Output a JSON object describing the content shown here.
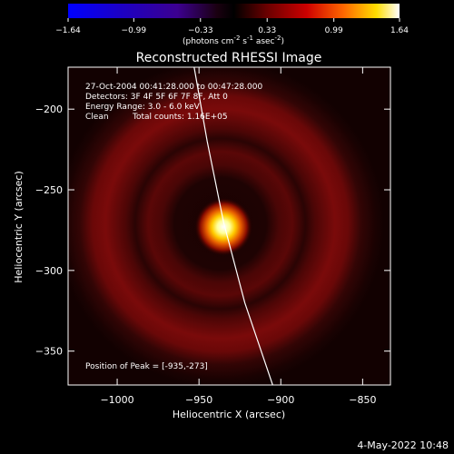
{
  "colorbar": {
    "ticks": [
      "-1.64",
      "-0.99",
      "-0.33",
      "0.33",
      "0.99",
      "1.64"
    ],
    "range": [
      -1.64,
      1.64
    ],
    "units_main": "(photons cm",
    "units_exp1": "-2",
    "units_mid": " s",
    "units_exp2": "-1",
    "units_tail": " asec",
    "units_exp3": "-2",
    "units_close": ")"
  },
  "chart_data": {
    "type": "heatmap",
    "title": "Reconstructed RHESSI Image",
    "xlabel": "Heliocentric X (arcsec)",
    "ylabel": "Heliocentric Y (arcsec)",
    "xlim": [
      -1030,
      -833
    ],
    "ylim": [
      -371,
      -174
    ],
    "xticks": [
      -1000,
      -950,
      -900,
      -850
    ],
    "yticks": [
      -200,
      -250,
      -300,
      -350
    ],
    "xtick_labels": [
      "−1000",
      "−950",
      "−900",
      "−850"
    ],
    "ytick_labels": [
      "−200",
      "−250",
      "−300",
      "−350"
    ],
    "source_peak": {
      "x": -935,
      "y": -273
    },
    "ring_centre": {
      "x": -937,
      "y": -271
    },
    "ring_radii_arcsec": [
      77,
      57
    ],
    "limb_curve": [
      [
        -953,
        -174
      ],
      [
        -945,
        -220
      ],
      [
        -935,
        -270
      ],
      [
        -922,
        -320
      ],
      [
        -905,
        -371
      ]
    ],
    "colors": {
      "peak": "#ffffff",
      "mid": "#ffcc00",
      "ring": "#8a0a0a",
      "low": "#000000"
    }
  },
  "annotations": {
    "time_range": "27-Oct-2004 00:41:28.000 to 00:47:28.000",
    "detectors": "Detectors: 3F 4F 5F 6F 7F 8F, Att 0",
    "energy": "Energy Range: 3.0 - 6.0 keV",
    "clean": "Clean",
    "counts": "Total counts: 1.16E+05",
    "peak_position": "Position of Peak = [-935,-273]"
  },
  "footer": {
    "date": "4-May-2022 10:48"
  }
}
